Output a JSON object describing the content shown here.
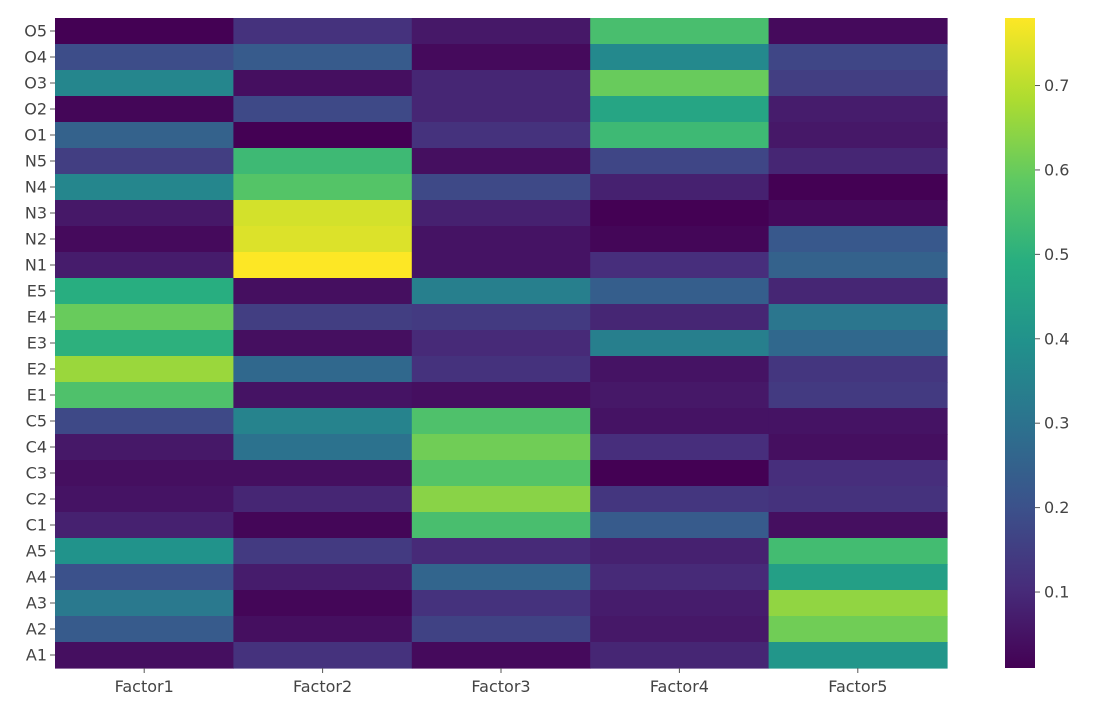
{
  "chart_data": {
    "type": "heatmap",
    "title": "",
    "xlabel": "",
    "ylabel": "",
    "colormap": "viridis",
    "columns": [
      "Factor1",
      "Factor2",
      "Factor3",
      "Factor4",
      "Factor5"
    ],
    "rows": [
      "O5",
      "O4",
      "O3",
      "O2",
      "O1",
      "N5",
      "N4",
      "N3",
      "N2",
      "N1",
      "E5",
      "E4",
      "E3",
      "E2",
      "E1",
      "C5",
      "C4",
      "C3",
      "C2",
      "C1",
      "A5",
      "A4",
      "A3",
      "A2",
      "A1"
    ],
    "values": [
      [
        0.01,
        0.12,
        0.06,
        0.55,
        0.03
      ],
      [
        0.19,
        0.23,
        0.03,
        0.37,
        0.17
      ],
      [
        0.36,
        0.04,
        0.09,
        0.6,
        0.15
      ],
      [
        0.02,
        0.18,
        0.09,
        0.46,
        0.07
      ],
      [
        0.25,
        0.01,
        0.12,
        0.53,
        0.06
      ],
      [
        0.15,
        0.53,
        0.04,
        0.17,
        0.09
      ],
      [
        0.36,
        0.57,
        0.18,
        0.08,
        0.01
      ],
      [
        0.06,
        0.73,
        0.08,
        0.01,
        0.03
      ],
      [
        0.03,
        0.74,
        0.05,
        0.02,
        0.22
      ],
      [
        0.07,
        0.78,
        0.05,
        0.11,
        0.25
      ],
      [
        0.49,
        0.04,
        0.34,
        0.24,
        0.09
      ],
      [
        0.6,
        0.15,
        0.14,
        0.09,
        0.31
      ],
      [
        0.5,
        0.04,
        0.1,
        0.34,
        0.27
      ],
      [
        0.66,
        0.27,
        0.12,
        0.05,
        0.13
      ],
      [
        0.56,
        0.05,
        0.04,
        0.06,
        0.14
      ],
      [
        0.18,
        0.35,
        0.56,
        0.05,
        0.05
      ],
      [
        0.06,
        0.3,
        0.61,
        0.11,
        0.04
      ],
      [
        0.04,
        0.04,
        0.57,
        0.01,
        0.11
      ],
      [
        0.05,
        0.09,
        0.64,
        0.13,
        0.12
      ],
      [
        0.08,
        0.02,
        0.55,
        0.23,
        0.04
      ],
      [
        0.4,
        0.14,
        0.1,
        0.08,
        0.54
      ],
      [
        0.2,
        0.07,
        0.26,
        0.1,
        0.44
      ],
      [
        0.32,
        0.02,
        0.12,
        0.07,
        0.65
      ],
      [
        0.23,
        0.04,
        0.16,
        0.06,
        0.61
      ],
      [
        0.04,
        0.12,
        0.03,
        0.09,
        0.41
      ]
    ],
    "colorbar": {
      "range": [
        0.01,
        0.78
      ],
      "ticks": [
        0.1,
        0.2,
        0.3,
        0.4,
        0.5,
        0.6,
        0.7
      ],
      "tick_labels": [
        "0.1",
        "0.2",
        "0.3",
        "0.4",
        "0.5",
        "0.6",
        "0.7"
      ]
    }
  }
}
